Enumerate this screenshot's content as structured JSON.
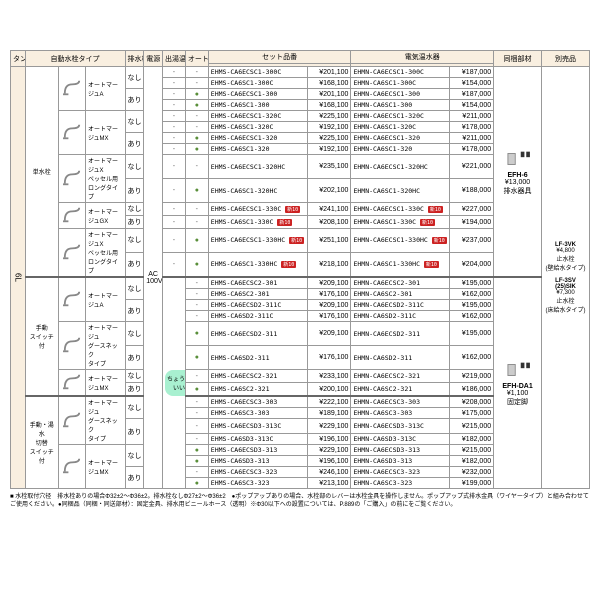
{
  "headers": {
    "tank": "タンク容量",
    "faucet_type": "自動水栓タイプ",
    "drain": "排水栓",
    "power": "電源",
    "temp_type": "出湯温度タイプ",
    "weekly_timer": "オートウィークリータイマー",
    "set_code": "セット品番",
    "set_price": "",
    "heater": "電気温水器",
    "heater_price": "",
    "bundle": "同梱部材",
    "option": "別売品"
  },
  "tank": "6L",
  "power": "AC\n100V",
  "temp_badge": "ちょうゆ\nいい",
  "groups": [
    {
      "group_label": "単水栓",
      "faucets": [
        {
          "name": "オートマージュA",
          "drains": [
            "なし",
            "あり"
          ]
        },
        {
          "name": "オートマージュMX",
          "drains": [
            "なし",
            "あり"
          ]
        },
        {
          "name": "オートマージュX\nベッセル用\nロングタイプ",
          "drains": [
            "なし",
            "あり"
          ]
        },
        {
          "name": "オートマージュGX",
          "drains": [
            "なし",
            "あり"
          ]
        },
        {
          "name": "オートマージュX\nベッセル用\nロングタイプ",
          "drains": [
            "なし",
            "あり"
          ]
        }
      ]
    },
    {
      "group_label": "手動\nスイッチ付",
      "faucets": [
        {
          "name": "オートマージュA",
          "drains": [
            "なし",
            "あり"
          ]
        },
        {
          "name": "オートマージュ\nグースネック\nタイプ",
          "drains": [
            "なし",
            "あり"
          ]
        },
        {
          "name": "オートマージュMX",
          "drains": [
            "なし",
            "あり"
          ]
        }
      ]
    },
    {
      "group_label": "手動・湯水\n切替\nスイッチ付",
      "faucets": [
        {
          "name": "オートマージュ\nグースネック\nタイプ",
          "drains": [
            "なし",
            "あり"
          ]
        },
        {
          "name": "オートマージュMX",
          "drains": [
            "なし",
            "あり"
          ]
        }
      ]
    }
  ],
  "rows": [
    {
      "temp": "-",
      "timer": false,
      "set": "EHMS-CA6ECSC1-300C",
      "sp": "¥201,100",
      "heat": "EHMN-CA6ECSC1-300C",
      "hp": "¥187,000"
    },
    {
      "temp": "-",
      "timer": false,
      "set": "EHMS-CA6SC1-300C",
      "sp": "¥168,100",
      "heat": "EHMN-CA6SC1-300C",
      "hp": "¥154,000"
    },
    {
      "temp": "-",
      "timer": true,
      "set": "EHMS-CA6ECSC1-300",
      "sp": "¥201,100",
      "heat": "EHMN-CA6ECSC1-300",
      "hp": "¥187,000"
    },
    {
      "temp": "-",
      "timer": true,
      "set": "EHMS-CA6SC1-300",
      "sp": "¥168,100",
      "heat": "EHMN-CA6SC1-300",
      "hp": "¥154,000"
    },
    {
      "temp": "-",
      "timer": false,
      "set": "EHMS-CA6ECSC1-320C",
      "sp": "¥225,100",
      "heat": "EHMN-CA6ECSC1-320C",
      "hp": "¥211,000"
    },
    {
      "temp": "-",
      "timer": false,
      "set": "EHMS-CA6SC1-320C",
      "sp": "¥192,100",
      "heat": "EHMN-CA6SC1-320C",
      "hp": "¥178,000"
    },
    {
      "temp": "-",
      "timer": true,
      "set": "EHMS-CA6ECSC1-320",
      "sp": "¥225,100",
      "heat": "EHMN-CA6ECSC1-320",
      "hp": "¥211,000"
    },
    {
      "temp": "-",
      "timer": true,
      "set": "EHMS-CA6SC1-320",
      "sp": "¥192,100",
      "heat": "EHMN-CA6SC1-320",
      "hp": "¥178,000"
    },
    {
      "temp": "-",
      "timer": false,
      "set": "EHMS-CA6ECSC1-320HC",
      "sp": "¥235,100",
      "heat": "EHMN-CA6ECSC1-320HC",
      "hp": "¥221,000"
    },
    {
      "temp": "-",
      "timer": true,
      "set": "EHMS-CA6SC1-320HC",
      "sp": "¥202,100",
      "heat": "EHMN-CA6SC1-320HC",
      "hp": "¥188,000"
    },
    {
      "temp": "-",
      "timer": false,
      "set": "EHMS-CA6ECSC1-330C",
      "sp": "¥241,100",
      "badge": true,
      "heat": "EHMN-CA6ECSC1-330C",
      "hp": "¥227,000",
      "hbadge": true
    },
    {
      "temp": "-",
      "timer": false,
      "set": "EHMS-CA6SC1-330C",
      "sp": "¥208,100",
      "badge": true,
      "heat": "EHMN-CA6SC1-330C",
      "hp": "¥194,000",
      "hbadge": true
    },
    {
      "temp": "-",
      "timer": true,
      "set": "EHMS-CA6ECSC1-330HC",
      "sp": "¥251,100",
      "badge": true,
      "heat": "EHMN-CA6ECSC1-330HC",
      "hp": "¥237,000",
      "hbadge": true
    },
    {
      "temp": "-",
      "timer": true,
      "set": "EHMS-CA6SC1-330HC",
      "sp": "¥218,100",
      "badge": true,
      "heat": "EHMN-CA6SC1-330HC",
      "hp": "¥204,000",
      "hbadge": true
    },
    {
      "temp": "g",
      "timer": false,
      "set": "EHMS-CA6ECSC2-301",
      "sp": "¥209,100",
      "heat": "EHMN-CA6ECSC2-301",
      "hp": "¥195,000",
      "sep": true
    },
    {
      "temp": "g",
      "timer": false,
      "set": "EHMS-CA6SC2-301",
      "sp": "¥176,100",
      "heat": "EHMN-CA6SC2-301",
      "hp": "¥162,000"
    },
    {
      "temp": "g",
      "timer": false,
      "set": "EHMS-CA6ECSD2-311C",
      "sp": "¥209,100",
      "heat": "EHMN-CA6ECSD2-311C",
      "hp": "¥195,000"
    },
    {
      "temp": "g",
      "timer": false,
      "set": "EHMS-CA6SD2-311C",
      "sp": "¥176,100",
      "heat": "EHMN-CA6SD2-311C",
      "hp": "¥162,000"
    },
    {
      "temp": "g",
      "timer": true,
      "set": "EHMS-CA6ECSD2-311",
      "sp": "¥209,100",
      "heat": "EHMN-CA6ECSD2-311",
      "hp": "¥195,000"
    },
    {
      "temp": "g",
      "timer": true,
      "set": "EHMS-CA6SD2-311",
      "sp": "¥176,100",
      "heat": "EHMN-CA6SD2-311",
      "hp": "¥162,000"
    },
    {
      "temp": "g",
      "timer": false,
      "set": "EHMS-CA6ECSC2-321",
      "sp": "¥233,100",
      "heat": "EHMN-CA6ECSC2-321",
      "hp": "¥219,000"
    },
    {
      "temp": "g",
      "timer": true,
      "set": "EHMS-CA6SC2-321",
      "sp": "¥200,100",
      "heat": "EHMN-CA6SC2-321",
      "hp": "¥186,000"
    },
    {
      "temp": "g",
      "timer": false,
      "set": "EHMS-CA6ECSC3-303",
      "sp": "¥222,100",
      "heat": "EHMN-CA6ECSC3-303",
      "hp": "¥208,000",
      "sep": true
    },
    {
      "temp": "g",
      "timer": false,
      "set": "EHMS-CA6SC3-303",
      "sp": "¥189,100",
      "heat": "EHMN-CA6SC3-303",
      "hp": "¥175,000"
    },
    {
      "temp": "g",
      "timer": false,
      "set": "EHMS-CA6ECSD3-313C",
      "sp": "¥229,100",
      "heat": "EHMN-CA6ECSD3-313C",
      "hp": "¥215,000"
    },
    {
      "temp": "g",
      "timer": false,
      "set": "EHMS-CA6SD3-313C",
      "sp": "¥196,100",
      "heat": "EHMN-CA6SD3-313C",
      "hp": "¥182,000"
    },
    {
      "temp": "g",
      "timer": true,
      "set": "EHMS-CA6ECSD3-313",
      "sp": "¥229,100",
      "heat": "EHMN-CA6ECSD3-313",
      "hp": "¥215,000"
    },
    {
      "temp": "g",
      "timer": true,
      "set": "EHMS-CA6SD3-313",
      "sp": "¥196,100",
      "heat": "EHMN-CA6SD3-313",
      "hp": "¥182,000"
    },
    {
      "temp": "g",
      "timer": false,
      "set": "EHMS-CA6ECSC3-323",
      "sp": "¥246,100",
      "heat": "EHMN-CA6ECSC3-323",
      "hp": "¥232,000"
    },
    {
      "temp": "g",
      "timer": true,
      "set": "EHMS-CA6SC3-323",
      "sp": "¥213,100",
      "heat": "EHMN-CA6SC3-323",
      "hp": "¥199,000"
    }
  ],
  "bundle": [
    {
      "code": "EFH-6",
      "price": "¥13,000",
      "desc": "排水器具",
      "rowspan": 14
    },
    {
      "code": "EFH-DA1",
      "price": "¥1,100",
      "desc": "固定脚",
      "rowspan": 16
    }
  ],
  "options": [
    {
      "code": "LF-3VK",
      "price": "¥4,800",
      "desc": "止水栓\n(壁給水タイプ)"
    },
    {
      "code": "LF-3SV\n(25)SIK",
      "price": "¥7,300",
      "desc": "止水栓\n(床給水タイプ)"
    }
  ],
  "footnotes": [
    "■ 水栓取付穴径　排水栓ありの場合Φ32±2～Φ36±2。排水栓なしΦ27±2～Φ36±2　●ポップアップありの場合、水栓部のレバーは水栓金具を操作しません。ポップアップ式排水金具（ワイヤータイプ）と組み合わせてご使用ください。●同梱品（同梱・同送部材）：固定金具、排水用ビニールホース（透明）※Φ30以下への設置については、P.889の「ご購入」の前にをご覧ください。"
  ],
  "badge_label": "新10",
  "colors": {
    "header_bg": "#f9efe0",
    "dot": "#5a8f3a",
    "badge": "#c22",
    "temp_bg": "#a8f0d0"
  }
}
